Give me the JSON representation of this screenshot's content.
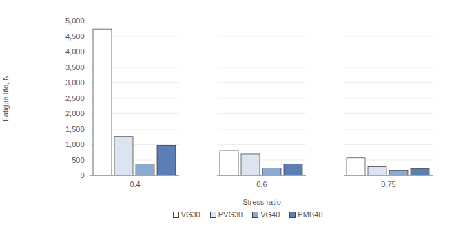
{
  "chart_data": {
    "type": "bar",
    "x_label": "Stress ratio",
    "y_label": "Fatigue life, N",
    "categories": [
      "0.4",
      "0.6",
      "0.75"
    ],
    "series": [
      {
        "name": "VG30",
        "color": "#ffffff",
        "values": [
          4730,
          800,
          560
        ]
      },
      {
        "name": "PVG30",
        "color": "#dbe5f1",
        "values": [
          1250,
          690,
          280
        ]
      },
      {
        "name": "VG40",
        "color": "#8ea9cf",
        "values": [
          370,
          230,
          150
        ]
      },
      {
        "name": "PMB40",
        "color": "#5b7fb5",
        "values": [
          970,
          370,
          210
        ]
      }
    ],
    "ylim": [
      0,
      5000
    ],
    "yticks": [
      0,
      500,
      1000,
      1500,
      2000,
      2500,
      3000,
      3500,
      4000,
      4500,
      5000
    ],
    "grid": true,
    "legend": "bottom"
  }
}
